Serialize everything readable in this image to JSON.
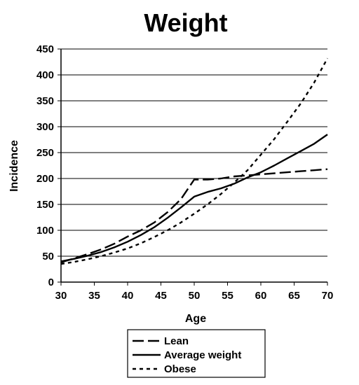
{
  "chart_data": {
    "type": "line",
    "title": "Weight",
    "xlabel": "Age",
    "ylabel": "Incidence",
    "xlim": [
      30,
      70
    ],
    "ylim": [
      0,
      450
    ],
    "xticks": [
      30,
      35,
      40,
      45,
      50,
      55,
      60,
      65,
      70
    ],
    "yticks": [
      0,
      50,
      100,
      150,
      200,
      250,
      300,
      350,
      400,
      450
    ],
    "grid": "horizontal",
    "legend_position": "bottom",
    "series": [
      {
        "name": "Lean",
        "style": "long-dash",
        "color": "#000000",
        "x": [
          30,
          32,
          34,
          36,
          38,
          40,
          42,
          44,
          46,
          48,
          50,
          52,
          54,
          56,
          58,
          60,
          62,
          64,
          66,
          68,
          70
        ],
        "y": [
          38,
          46,
          54,
          63,
          74,
          88,
          100,
          115,
          135,
          160,
          198,
          198,
          200,
          204,
          206,
          208,
          210,
          212,
          214,
          216,
          218
        ]
      },
      {
        "name": "Average weight",
        "style": "solid",
        "color": "#000000",
        "x": [
          30,
          32,
          34,
          36,
          38,
          40,
          42,
          44,
          46,
          48,
          50,
          52,
          54,
          56,
          58,
          60,
          62,
          64,
          66,
          68,
          70
        ],
        "y": [
          40,
          45,
          51,
          58,
          67,
          78,
          91,
          106,
          124,
          144,
          165,
          174,
          181,
          190,
          202,
          212,
          225,
          239,
          253,
          267,
          285
        ]
      },
      {
        "name": "Obese",
        "style": "short-dash",
        "color": "#000000",
        "x": [
          30,
          32,
          34,
          36,
          38,
          40,
          42,
          44,
          46,
          48,
          50,
          52,
          54,
          56,
          58,
          60,
          62,
          64,
          66,
          68,
          70
        ],
        "y": [
          35,
          39,
          44,
          50,
          57,
          65,
          75,
          87,
          100,
          115,
          132,
          150,
          170,
          192,
          216,
          246,
          276,
          310,
          345,
          385,
          432
        ]
      }
    ]
  }
}
